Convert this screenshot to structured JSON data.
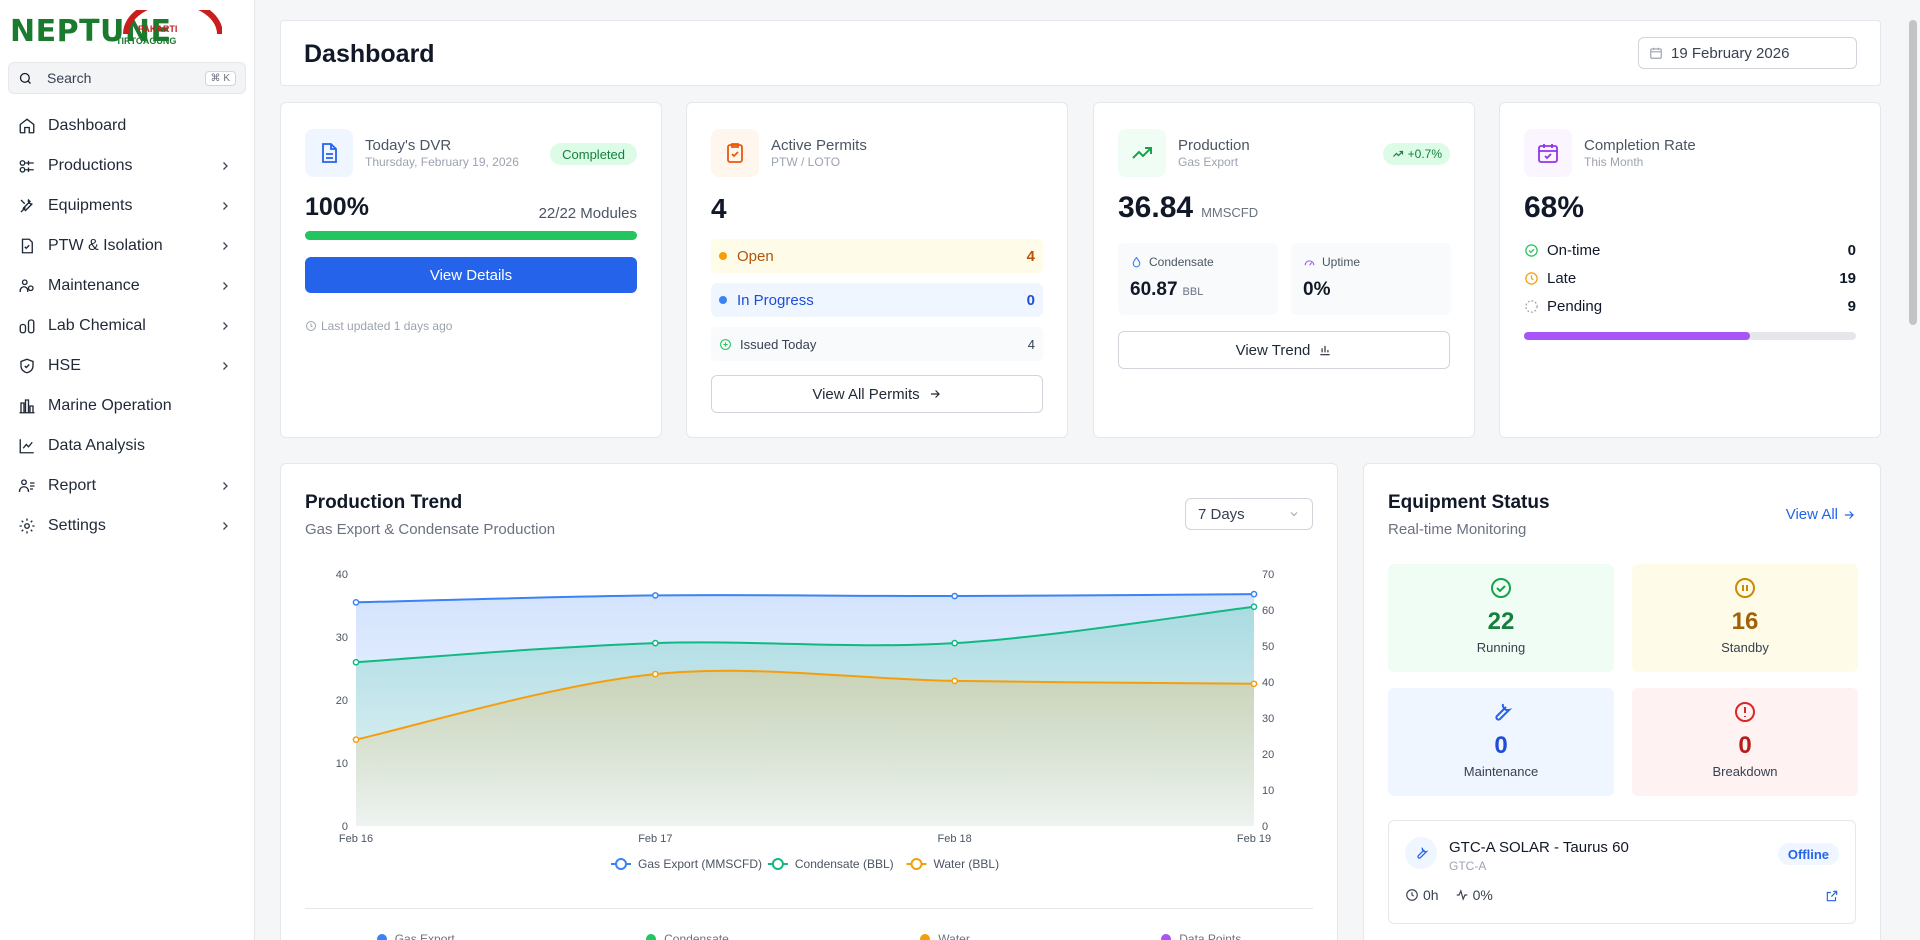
{
  "brand": {
    "name": "NEPTUNE",
    "tag1": "PAKARTI",
    "tag2": "TIRTOAGUNG"
  },
  "search": {
    "label": "Search",
    "shortcut": "⌘ K"
  },
  "nav": [
    {
      "label": "Dashboard",
      "icon": "home-icon"
    },
    {
      "label": "Productions",
      "icon": "factory-icon"
    },
    {
      "label": "Equipments",
      "icon": "tools-icon"
    },
    {
      "label": "PTW & Isolation",
      "icon": "permit-icon"
    },
    {
      "label": "Maintenance",
      "icon": "users-wrench-icon"
    },
    {
      "label": "Lab Chemical",
      "icon": "flask-icon"
    },
    {
      "label": "HSE",
      "icon": "shield-icon"
    },
    {
      "label": "Marine Operation",
      "icon": "ship-icon"
    },
    {
      "label": "Data Analysis",
      "icon": "chart-icon"
    },
    {
      "label": "Report",
      "icon": "report-icon"
    },
    {
      "label": "Settings",
      "icon": "gear-icon"
    }
  ],
  "header": {
    "title": "Dashboard",
    "date": "19 February 2026"
  },
  "dvr": {
    "title": "Today's DVR",
    "subtitle": "Thursday, February 19, 2026",
    "status": "Completed",
    "percent": "100%",
    "modules": "22/22 Modules",
    "progress": 1.0,
    "button": "View Details",
    "updated": "Last updated 1 days ago"
  },
  "permits": {
    "title": "Active Permits",
    "subtitle": "PTW / LOTO",
    "count": "4",
    "open_label": "Open",
    "open_value": "4",
    "progress_label": "In Progress",
    "progress_value": "0",
    "issued_label": "Issued Today",
    "issued_value": "4",
    "button": "View All Permits"
  },
  "production": {
    "title": "Production",
    "subtitle": "Gas Export",
    "change": "+0.7%",
    "value": "36.84",
    "unit": "MMSCFD",
    "condensate_label": "Condensate",
    "condensate_value": "60.87",
    "condensate_unit": "BBL",
    "uptime_label": "Uptime",
    "uptime_value": "0%",
    "button": "View Trend"
  },
  "completion": {
    "title": "Completion Rate",
    "subtitle": "This Month",
    "rate": "68%",
    "progress": 0.68,
    "ontime_label": "On-time",
    "ontime_value": "0",
    "late_label": "Late",
    "late_value": "19",
    "pending_label": "Pending",
    "pending_value": "9"
  },
  "trend": {
    "title": "Production Trend",
    "subtitle": "Gas Export & Condensate Production",
    "range": "7 Days",
    "summary": [
      "Gas Export",
      "Condensate",
      "Water",
      "Data Points"
    ]
  },
  "chart_data": {
    "type": "area",
    "x": [
      "Feb 16",
      "Feb 17",
      "Feb 18",
      "Feb 19"
    ],
    "series": [
      {
        "name": "Gas Export (MMSCFD)",
        "axis": "left",
        "values": [
          35.5,
          36.6,
          36.5,
          36.8
        ],
        "color": "#3b82f6"
      },
      {
        "name": "Condensate (BBL)",
        "axis": "right",
        "values": [
          45.5,
          50.8,
          50.8,
          60.9
        ],
        "color": "#10b981"
      },
      {
        "name": "Water (BBL)",
        "axis": "right",
        "values": [
          24,
          42.2,
          40.3,
          39.5
        ],
        "color": "#f59e0b"
      }
    ],
    "ylim_left": [
      0,
      40
    ],
    "yticks_left": [
      0,
      10,
      20,
      30,
      40
    ],
    "ylim_right": [
      0,
      70
    ],
    "yticks_right": [
      0,
      10,
      20,
      30,
      40,
      50,
      60,
      70
    ],
    "legend": "bottom"
  },
  "equipment": {
    "title": "Equipment Status",
    "subtitle": "Real-time Monitoring",
    "view_all": "View All",
    "tiles": [
      {
        "value": "22",
        "label": "Running"
      },
      {
        "value": "16",
        "label": "Standby"
      },
      {
        "value": "0",
        "label": "Maintenance"
      },
      {
        "value": "0",
        "label": "Breakdown"
      }
    ],
    "item": {
      "name": "GTC-A SOLAR - Taurus 60",
      "code": "GTC-A",
      "status": "Offline",
      "hours": "0h",
      "efficiency": "0%"
    }
  }
}
